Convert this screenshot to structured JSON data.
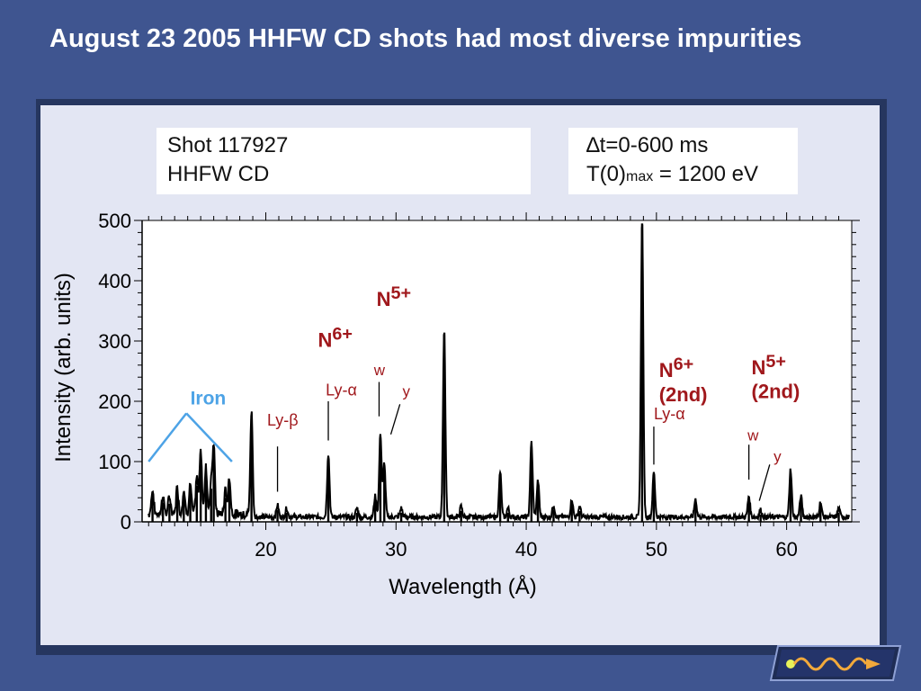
{
  "slide": {
    "title": "August 23 2005 HHFW CD shots had most diverse impurities"
  },
  "info_left": {
    "line1": "Shot 117927",
    "line2": "HHFW CD"
  },
  "info_right": {
    "line1": "∆t=0-600 ms",
    "line2_prefix": "T(0)",
    "line2_sub": "max",
    "line2_suffix": " = 1200 eV"
  },
  "colors": {
    "background": "#3f5590",
    "panel": "#e3e6f3",
    "annotation_red": "#a0181c",
    "iron_blue": "#4da3e6",
    "trace": "#000000"
  },
  "logo": {
    "icon": "wave-arrow-icon"
  },
  "chart_data": {
    "type": "line",
    "xlabel": "Wavelength (Å)",
    "ylabel": "Intensity (arb. units)",
    "xlim": [
      10.5,
      65
    ],
    "ylim": [
      0,
      500
    ],
    "xticks": [
      20,
      30,
      40,
      50,
      60
    ],
    "yticks": [
      0,
      100,
      200,
      300,
      400,
      500
    ],
    "grid": false,
    "baseline": 8,
    "peaks": [
      {
        "x": 11.3,
        "y": 40
      },
      {
        "x": 12.1,
        "y": 32
      },
      {
        "x": 12.6,
        "y": 30
      },
      {
        "x": 13.2,
        "y": 45
      },
      {
        "x": 13.7,
        "y": 40
      },
      {
        "x": 14.2,
        "y": 50
      },
      {
        "x": 14.7,
        "y": 60
      },
      {
        "x": 15.0,
        "y": 110
      },
      {
        "x": 15.4,
        "y": 80
      },
      {
        "x": 15.8,
        "y": 55
      },
      {
        "x": 16.0,
        "y": 110
      },
      {
        "x": 16.9,
        "y": 40
      },
      {
        "x": 17.2,
        "y": 60
      },
      {
        "x": 18.9,
        "y": 170
      },
      {
        "x": 20.9,
        "y": 20
      },
      {
        "x": 21.6,
        "y": 15
      },
      {
        "x": 24.8,
        "y": 105
      },
      {
        "x": 27.0,
        "y": 15
      },
      {
        "x": 28.4,
        "y": 35
      },
      {
        "x": 28.8,
        "y": 140
      },
      {
        "x": 29.1,
        "y": 90
      },
      {
        "x": 30.4,
        "y": 15
      },
      {
        "x": 33.7,
        "y": 310
      },
      {
        "x": 35.0,
        "y": 18
      },
      {
        "x": 38.0,
        "y": 75
      },
      {
        "x": 38.6,
        "y": 15
      },
      {
        "x": 40.4,
        "y": 125
      },
      {
        "x": 40.9,
        "y": 60
      },
      {
        "x": 42.1,
        "y": 20
      },
      {
        "x": 43.5,
        "y": 30
      },
      {
        "x": 44.1,
        "y": 18
      },
      {
        "x": 48.9,
        "y": 495
      },
      {
        "x": 49.8,
        "y": 75
      },
      {
        "x": 53.0,
        "y": 30
      },
      {
        "x": 57.1,
        "y": 35
      },
      {
        "x": 58.0,
        "y": 12
      },
      {
        "x": 60.3,
        "y": 80
      },
      {
        "x": 61.1,
        "y": 35
      },
      {
        "x": 62.6,
        "y": 25
      },
      {
        "x": 64.0,
        "y": 15
      }
    ],
    "annotations": [
      {
        "id": "n5-plus",
        "text": "N",
        "sup": "5+",
        "x": 28.5,
        "y": 358,
        "size": 22,
        "color": "#a0181c"
      },
      {
        "id": "n6-plus",
        "text": "N",
        "sup": "6+",
        "x": 24.0,
        "y": 290,
        "size": 22,
        "color": "#a0181c"
      },
      {
        "id": "ly-alpha",
        "text": "Ly-α",
        "x": 24.6,
        "y": 210,
        "size": 18,
        "color": "#a0181c"
      },
      {
        "id": "w-label",
        "text": "w",
        "x": 28.3,
        "y": 243,
        "size": 17,
        "color": "#a0181c"
      },
      {
        "id": "y-label",
        "text": "y",
        "x": 30.5,
        "y": 208,
        "size": 17,
        "color": "#a0181c"
      },
      {
        "id": "ly-beta",
        "text": "Ly-β",
        "x": 20.1,
        "y": 160,
        "size": 18,
        "color": "#a0181c"
      },
      {
        "id": "iron",
        "text": "Iron",
        "x": 14.2,
        "y": 195,
        "size": 21,
        "color": "#4da3e6"
      },
      {
        "id": "n6-plus-2nd",
        "text": "N",
        "sup": "6+",
        "x": 50.2,
        "y": 240,
        "size": 22,
        "color": "#a0181c"
      },
      {
        "id": "n6-2nd-label",
        "text": "(2nd)",
        "x": 50.2,
        "y": 200,
        "size": 22,
        "color": "#a0181c"
      },
      {
        "id": "ly-alpha-2nd",
        "text": "Ly-α",
        "x": 49.8,
        "y": 170,
        "size": 18,
        "color": "#a0181c"
      },
      {
        "id": "n5-plus-2nd",
        "text": "N",
        "sup": "5+",
        "x": 57.3,
        "y": 245,
        "size": 22,
        "color": "#a0181c"
      },
      {
        "id": "n5-2nd-label",
        "text": "(2nd)",
        "x": 57.3,
        "y": 205,
        "size": 22,
        "color": "#a0181c"
      },
      {
        "id": "w-label-2nd",
        "text": "w",
        "x": 57.0,
        "y": 135,
        "size": 17,
        "color": "#a0181c"
      },
      {
        "id": "y-label-2nd",
        "text": "y",
        "x": 59.0,
        "y": 100,
        "size": 17,
        "color": "#a0181c"
      }
    ],
    "markers": [
      {
        "id": "ly-beta-marker",
        "x1": 20.9,
        "y1": 125,
        "x2": 20.9,
        "y2": 50,
        "color": "#000000"
      },
      {
        "id": "ly-alpha-marker",
        "x1": 24.8,
        "y1": 200,
        "x2": 24.8,
        "y2": 135,
        "color": "#000000"
      },
      {
        "id": "w-marker",
        "x1": 28.7,
        "y1": 232,
        "x2": 28.7,
        "y2": 175,
        "color": "#000000"
      },
      {
        "id": "y-marker",
        "x1": 30.3,
        "y1": 195,
        "x2": 29.6,
        "y2": 145,
        "color": "#000000"
      },
      {
        "id": "ly-alpha-2nd-marker",
        "x1": 49.8,
        "y1": 158,
        "x2": 49.8,
        "y2": 95,
        "color": "#000000"
      },
      {
        "id": "w-marker-2nd",
        "x1": 57.1,
        "y1": 128,
        "x2": 57.1,
        "y2": 70,
        "color": "#000000"
      },
      {
        "id": "y-marker-2nd",
        "x1": 58.7,
        "y1": 95,
        "x2": 57.9,
        "y2": 35,
        "color": "#000000"
      },
      {
        "id": "iron-bracket-left",
        "x1": 13.9,
        "y1": 180,
        "x2": 11.0,
        "y2": 100,
        "color": "#4da3e6"
      },
      {
        "id": "iron-bracket-right",
        "x1": 13.9,
        "y1": 180,
        "x2": 17.4,
        "y2": 100,
        "color": "#4da3e6"
      }
    ]
  }
}
